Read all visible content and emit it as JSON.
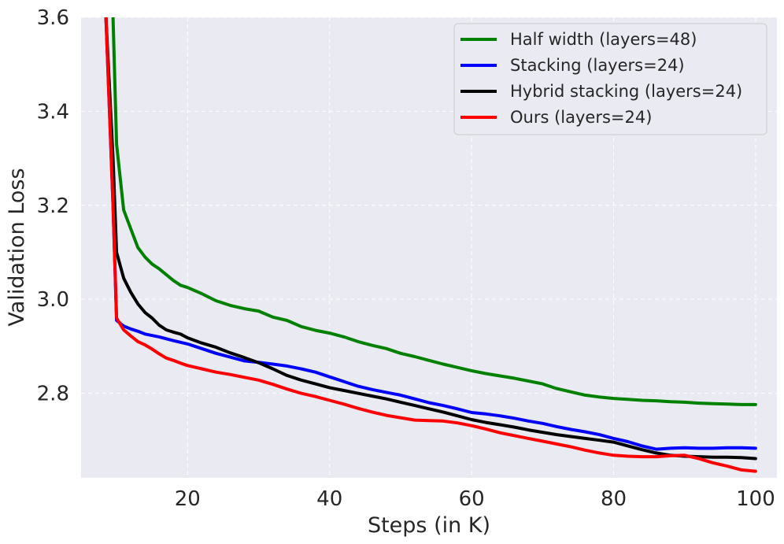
{
  "chart_data": {
    "type": "line",
    "title": "",
    "xlabel": "Steps (in K)",
    "ylabel": "Validation Loss",
    "xlim": [
      5,
      103
    ],
    "ylim": [
      2.62,
      3.6
    ],
    "xticks": [
      20,
      40,
      60,
      80,
      100
    ],
    "yticks": [
      2.8,
      3.0,
      3.2,
      3.4,
      3.6
    ],
    "xtick_labels": [
      "20",
      "40",
      "60",
      "80",
      "100"
    ],
    "ytick_labels": [
      "2.8",
      "3.0",
      "3.2",
      "3.4",
      "3.6"
    ],
    "grid": true,
    "legend_position": "top-right",
    "series": [
      {
        "name": "Half width (layers=48)",
        "color": "#008000",
        "x": [
          8.5,
          9.5,
          10,
          11,
          12,
          13,
          14,
          15,
          16,
          18,
          19,
          20,
          22,
          24,
          26,
          28,
          30,
          32,
          34,
          36,
          38,
          40,
          42,
          44,
          46,
          48,
          50,
          52,
          54,
          56,
          58,
          60,
          62,
          64,
          66,
          68,
          70,
          72,
          74,
          76,
          78,
          80,
          82,
          84,
          86,
          88,
          90,
          92,
          94,
          96,
          98,
          100
        ],
        "y": [
          3.9,
          3.6,
          3.33,
          3.19,
          3.15,
          3.11,
          3.09,
          3.075,
          3.065,
          3.04,
          3.03,
          3.025,
          3.012,
          2.997,
          2.987,
          2.98,
          2.975,
          2.962,
          2.955,
          2.942,
          2.934,
          2.928,
          2.92,
          2.91,
          2.902,
          2.895,
          2.885,
          2.878,
          2.87,
          2.862,
          2.855,
          2.848,
          2.842,
          2.837,
          2.832,
          2.826,
          2.82,
          2.81,
          2.803,
          2.796,
          2.792,
          2.789,
          2.787,
          2.785,
          2.784,
          2.782,
          2.781,
          2.779,
          2.778,
          2.777,
          2.776,
          2.776
        ]
      },
      {
        "name": "Stacking (layers=24)",
        "color": "#0000ff",
        "x": [
          8.5,
          9.5,
          10,
          11,
          12,
          13,
          14,
          16,
          18,
          20,
          22,
          24,
          26,
          28,
          30,
          32,
          34,
          36,
          38,
          40,
          42,
          44,
          46,
          48,
          50,
          52,
          54,
          56,
          58,
          60,
          62,
          64,
          66,
          68,
          70,
          72,
          74,
          76,
          78,
          80,
          82,
          84,
          86,
          88,
          90,
          92,
          94,
          96,
          98,
          100
        ],
        "y": [
          3.6,
          3.2,
          2.955,
          2.943,
          2.937,
          2.932,
          2.926,
          2.92,
          2.912,
          2.905,
          2.895,
          2.885,
          2.877,
          2.869,
          2.866,
          2.862,
          2.858,
          2.852,
          2.845,
          2.835,
          2.825,
          2.815,
          2.808,
          2.802,
          2.796,
          2.788,
          2.78,
          2.774,
          2.767,
          2.759,
          2.756,
          2.752,
          2.747,
          2.741,
          2.736,
          2.729,
          2.723,
          2.718,
          2.712,
          2.704,
          2.697,
          2.688,
          2.681,
          2.683,
          2.684,
          2.683,
          2.683,
          2.684,
          2.684,
          2.683
        ]
      },
      {
        "name": "Hybrid stacking (layers=24)",
        "color": "#000000",
        "x": [
          8.5,
          9.5,
          10,
          11,
          12,
          13,
          14,
          15,
          16,
          17,
          18,
          19,
          20,
          22,
          24,
          26,
          28,
          30,
          32,
          34,
          36,
          38,
          40,
          42,
          44,
          46,
          48,
          50,
          52,
          54,
          56,
          58,
          60,
          62,
          64,
          66,
          68,
          70,
          72,
          74,
          76,
          78,
          80,
          82,
          84,
          86,
          88,
          90,
          92,
          94,
          96,
          98,
          100
        ],
        "y": [
          3.6,
          3.3,
          3.1,
          3.045,
          3.015,
          2.99,
          2.972,
          2.96,
          2.945,
          2.935,
          2.93,
          2.926,
          2.918,
          2.907,
          2.898,
          2.886,
          2.876,
          2.865,
          2.852,
          2.838,
          2.828,
          2.82,
          2.812,
          2.806,
          2.8,
          2.794,
          2.788,
          2.781,
          2.774,
          2.767,
          2.76,
          2.752,
          2.744,
          2.738,
          2.733,
          2.728,
          2.722,
          2.717,
          2.712,
          2.708,
          2.704,
          2.7,
          2.696,
          2.688,
          2.68,
          2.673,
          2.668,
          2.666,
          2.665,
          2.664,
          2.664,
          2.663,
          2.661
        ]
      },
      {
        "name": "Ours (layers=24)",
        "color": "#ff0000",
        "x": [
          8.5,
          9.5,
          10,
          11,
          12,
          13,
          14,
          15,
          16,
          17,
          18,
          19,
          20,
          22,
          24,
          26,
          28,
          30,
          32,
          34,
          36,
          38,
          40,
          42,
          44,
          46,
          48,
          50,
          52,
          54,
          56,
          58,
          60,
          62,
          64,
          66,
          68,
          70,
          72,
          74,
          76,
          78,
          80,
          82,
          84,
          86,
          88,
          90,
          92,
          94,
          96,
          98,
          100
        ],
        "y": [
          3.6,
          3.2,
          2.96,
          2.935,
          2.922,
          2.91,
          2.903,
          2.894,
          2.884,
          2.875,
          2.87,
          2.864,
          2.859,
          2.852,
          2.845,
          2.84,
          2.834,
          2.828,
          2.819,
          2.809,
          2.8,
          2.793,
          2.785,
          2.777,
          2.768,
          2.76,
          2.753,
          2.748,
          2.743,
          2.742,
          2.741,
          2.737,
          2.731,
          2.724,
          2.716,
          2.71,
          2.704,
          2.698,
          2.692,
          2.686,
          2.679,
          2.673,
          2.668,
          2.666,
          2.665,
          2.665,
          2.667,
          2.668,
          2.661,
          2.652,
          2.645,
          2.637,
          2.634
        ]
      }
    ]
  }
}
